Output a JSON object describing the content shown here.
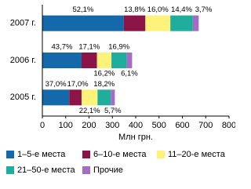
{
  "chart_data": {
    "type": "stacked-bar-horizontal",
    "x_label": "Млн грн.",
    "categories": [
      "2005 г.",
      "2006 г.",
      "2007 г."
    ],
    "series": [
      {
        "name": "1–5-е места",
        "color": "#1469aa",
        "values": [
          115,
          168,
          349
        ],
        "share_labels": [
          "37,0%",
          "43,7%",
          "52,1%"
        ]
      },
      {
        "name": "6–10-е места",
        "color": "#8c1446",
        "values": [
          53,
          66,
          92.5
        ],
        "share_labels": [
          "17,0%",
          "17,1%",
          "13,8%"
        ]
      },
      {
        "name": "11–20-е места",
        "color": "#fff27a",
        "values": [
          68.5,
          62,
          107
        ],
        "share_labels": [
          "22,1%",
          "16,2%",
          "16,0%"
        ]
      },
      {
        "name": "21–50-е места",
        "color": "#1fae9c",
        "values": [
          56.5,
          65,
          96.5
        ],
        "share_labels": [
          "18,2%",
          "16,9%",
          "14,4%"
        ]
      },
      {
        "name": "Прочие",
        "color": "#a46cc4",
        "values": [
          17.5,
          23.5,
          25
        ],
        "share_labels": [
          "5,7%",
          "6,1%",
          "3,7%"
        ]
      }
    ],
    "xlim": [
      0,
      800
    ],
    "xticks": [
      0,
      100,
      200,
      300,
      400,
      500,
      600,
      700,
      800
    ]
  }
}
